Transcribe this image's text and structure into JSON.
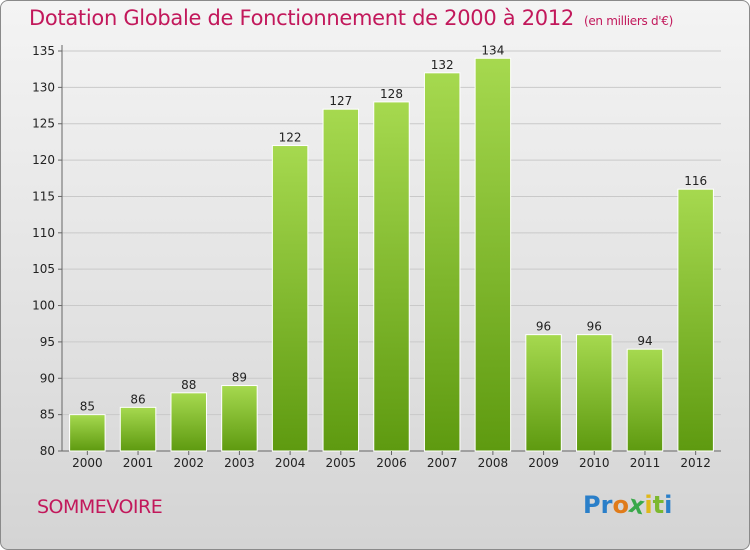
{
  "title": "Dotation Globale de Fonctionnement de 2000 à 2012",
  "unit_note": "(en milliers d'€)",
  "commune": "SOMMEVOIRE",
  "logo": {
    "letters": [
      "P",
      "r",
      "o",
      "x",
      "i",
      "t",
      "i"
    ],
    "colors": [
      "#2a7fc9",
      "#2a7fc9",
      "#e07b1a",
      "#3aa84a",
      "#e0b81a",
      "#7cb82f",
      "#2a7fc9"
    ]
  },
  "colors": {
    "bar_light": "#a6d94f",
    "bar_dark": "#5e9a10",
    "title": "#c2185b"
  },
  "chart_data": {
    "type": "bar",
    "categories": [
      "2000",
      "2001",
      "2002",
      "2003",
      "2004",
      "2005",
      "2006",
      "2007",
      "2008",
      "2009",
      "2010",
      "2011",
      "2012"
    ],
    "values": [
      85,
      86,
      88,
      89,
      122,
      127,
      128,
      132,
      134,
      96,
      96,
      94,
      116
    ],
    "ylim": [
      80,
      135
    ],
    "yticks": [
      80,
      85,
      90,
      95,
      100,
      105,
      110,
      115,
      120,
      125,
      130,
      135
    ],
    "grid": true
  }
}
